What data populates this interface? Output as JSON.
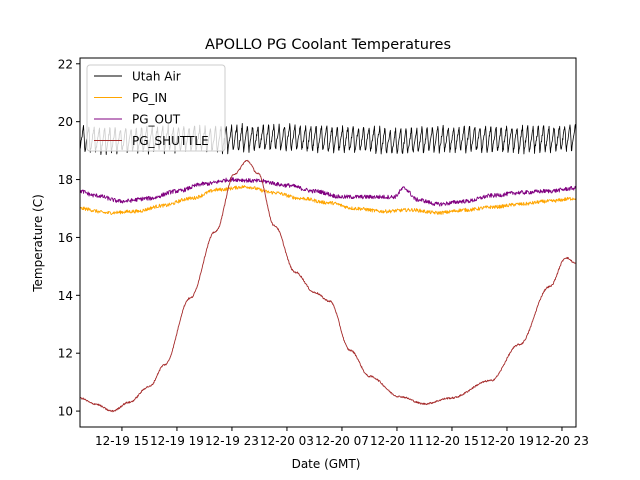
{
  "chart_data": {
    "type": "line",
    "title": "APOLLO PG Coolant Temperatures",
    "xlabel": "Date (GMT)",
    "ylabel": "Temperature (C)",
    "x_unit": "hours since 12-19 00:00 GMT",
    "xlim": [
      11.95,
      48.02
    ],
    "ylim": [
      9.45,
      22.2
    ],
    "grid": false,
    "legend_position": "top-left",
    "x_ticks": [
      {
        "value": 15,
        "label": "12-19 15"
      },
      {
        "value": 19,
        "label": "12-19 19"
      },
      {
        "value": 23,
        "label": "12-19 23"
      },
      {
        "value": 27,
        "label": "12-20 03"
      },
      {
        "value": 31,
        "label": "12-20 07"
      },
      {
        "value": 35,
        "label": "12-20 11"
      },
      {
        "value": 39,
        "label": "12-20 15"
      },
      {
        "value": 43,
        "label": "12-20 19"
      },
      {
        "value": 47,
        "label": "12-20 23"
      }
    ],
    "y_ticks": [
      {
        "value": 10,
        "label": "10"
      },
      {
        "value": 12,
        "label": "12"
      },
      {
        "value": 14,
        "label": "14"
      },
      {
        "value": 16,
        "label": "16"
      },
      {
        "value": 18,
        "label": "18"
      },
      {
        "value": 20,
        "label": "20"
      },
      {
        "value": 22,
        "label": "22"
      }
    ],
    "series": [
      {
        "name": "Utah Air",
        "color": "#000000",
        "oscillation": 0.45,
        "x": [
          11.95,
          14,
          18,
          22,
          26,
          30,
          33,
          35,
          38,
          42,
          46,
          48.02
        ],
        "values": [
          19.4,
          19.35,
          19.4,
          19.4,
          19.45,
          19.4,
          19.4,
          19.3,
          19.4,
          19.4,
          19.4,
          19.45
        ]
      },
      {
        "name": "PG_IN",
        "color": "#ffa500",
        "oscillation": 0.06,
        "x": [
          11.95,
          14,
          16,
          18,
          20,
          22,
          24,
          26,
          28,
          30,
          32,
          34,
          36,
          38,
          40,
          42,
          44,
          46,
          48.02
        ],
        "values": [
          17.0,
          16.85,
          16.9,
          17.1,
          17.35,
          17.65,
          17.75,
          17.55,
          17.35,
          17.2,
          17.0,
          16.9,
          16.95,
          16.85,
          16.95,
          17.05,
          17.15,
          17.25,
          17.35
        ]
      },
      {
        "name": "PG_OUT",
        "color": "#800080",
        "oscillation": 0.07,
        "x": [
          11.95,
          13,
          15,
          17,
          19,
          21,
          23,
          25,
          27,
          29,
          31,
          33,
          34.8,
          35.5,
          36.5,
          38,
          40,
          42,
          44,
          46,
          48.02
        ],
        "values": [
          17.6,
          17.45,
          17.25,
          17.35,
          17.6,
          17.85,
          18.0,
          17.95,
          17.8,
          17.6,
          17.4,
          17.4,
          17.4,
          17.7,
          17.3,
          17.15,
          17.25,
          17.45,
          17.55,
          17.6,
          17.7
        ]
      },
      {
        "name": "PG_SHUTTLE",
        "color": "#a52a2a",
        "oscillation": 0.03,
        "x": [
          11.95,
          13.0,
          14.3,
          15.5,
          17.0,
          18.1,
          19.95,
          21.8,
          23.2,
          24.1,
          24.9,
          26.1,
          27.6,
          29.0,
          30.1,
          31.6,
          33.0,
          35.2,
          37.0,
          38.9,
          41.8,
          43.9,
          46.1,
          47.3,
          48.02
        ],
        "values": [
          10.45,
          10.25,
          10.0,
          10.3,
          10.85,
          11.6,
          13.9,
          16.2,
          18.2,
          18.65,
          18.2,
          16.4,
          14.8,
          14.1,
          13.8,
          12.1,
          11.2,
          10.5,
          10.25,
          10.45,
          11.05,
          12.3,
          14.3,
          15.3,
          15.1
        ]
      }
    ]
  }
}
